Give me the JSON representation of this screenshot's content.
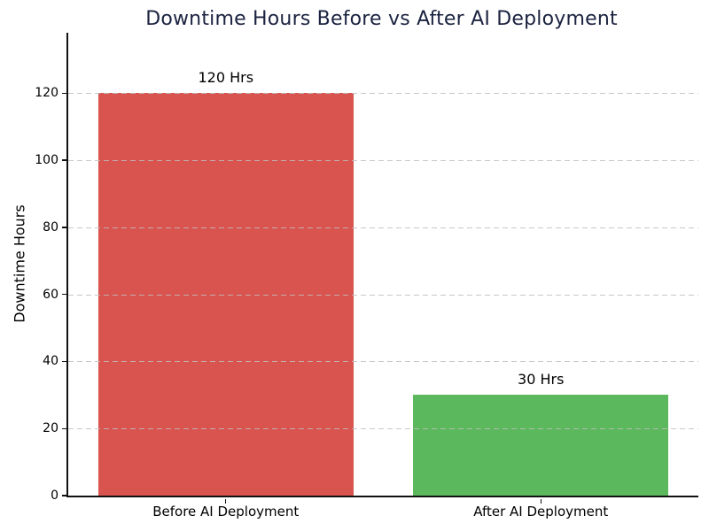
{
  "chart_data": {
    "type": "bar",
    "title": "Downtime Hours Before vs After AI Deployment",
    "title_color": "#1b2340",
    "xlabel": "",
    "ylabel": "Downtime Hours",
    "categories": [
      "Before AI Deployment",
      "After AI Deployment"
    ],
    "values": [
      120,
      30
    ],
    "bar_labels": [
      "120 Hrs",
      "30 Hrs"
    ],
    "bar_colors": [
      "#d9534f",
      "#5cb85c"
    ],
    "yticks": [
      0,
      20,
      40,
      60,
      80,
      100,
      120
    ],
    "ylim": [
      0,
      138
    ],
    "bar_width_fraction": 0.405,
    "grid": "horizontal dashed, light gray, drawn over bars",
    "legend": "none",
    "spines": "left and bottom only",
    "background_color": "#ffffff"
  }
}
